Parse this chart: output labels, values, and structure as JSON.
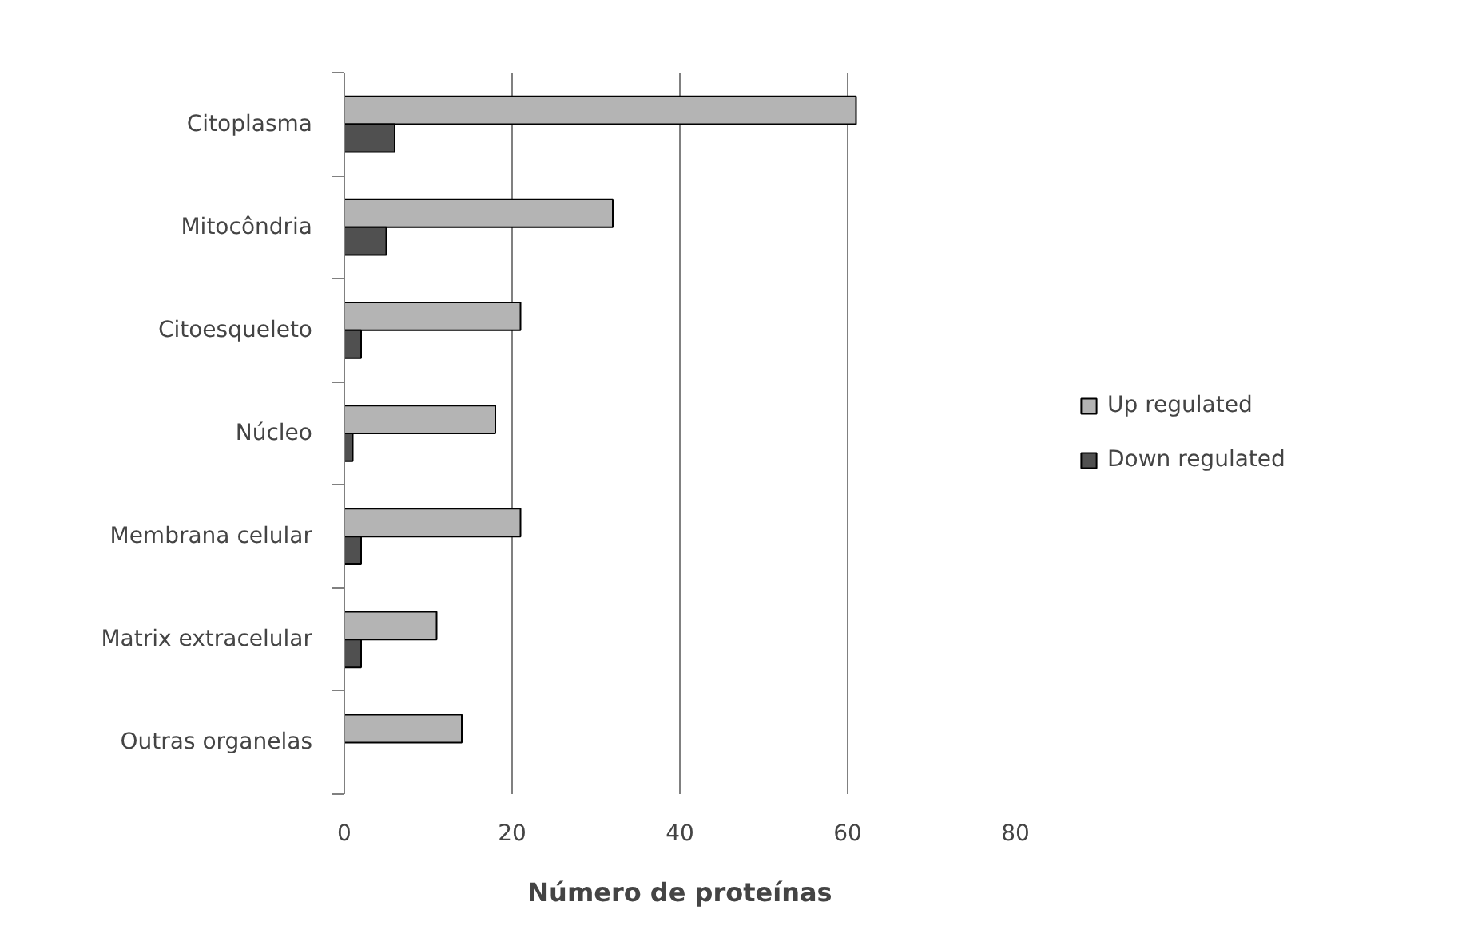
{
  "chart_data": {
    "type": "bar",
    "orientation": "horizontal",
    "xlabel": "Número de proteínas",
    "categories": [
      "Citoplasma",
      "Mitocôndria",
      "Citoesqueleto",
      "Núcleo",
      "Membrana celular",
      "Matrix extracelular",
      "Outras organelas"
    ],
    "series": [
      {
        "name": "Up regulated",
        "color": "#b4b4b4",
        "values": [
          61,
          32,
          21,
          18,
          21,
          11,
          14
        ]
      },
      {
        "name": "Down regulated",
        "color": "#505050",
        "values": [
          6,
          5,
          2,
          1,
          2,
          2,
          null
        ]
      }
    ],
    "xlim": [
      0,
      80
    ],
    "xticks": [
      0,
      20,
      40,
      60,
      80
    ],
    "grid": "x",
    "legend": "right"
  }
}
